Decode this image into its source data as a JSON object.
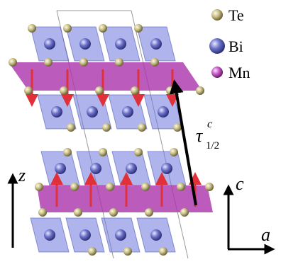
{
  "legend": [
    {
      "label": "Te"
    },
    {
      "label": "Bi"
    },
    {
      "label": "Mn"
    }
  ],
  "annotations": {
    "tau": "τ",
    "tau_sup": "c",
    "tau_sub": "1/2",
    "z_axis": "z",
    "c_axis": "c",
    "a_axis": "a"
  }
}
